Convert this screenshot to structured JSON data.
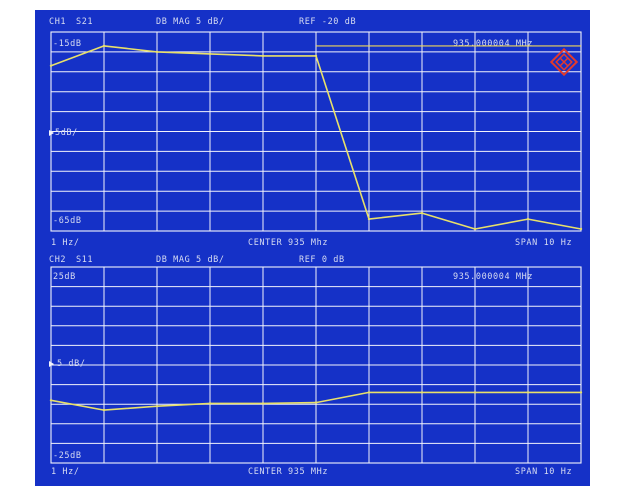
{
  "colors": {
    "background": "#1531c7",
    "grid": "#f2f3fb",
    "trace": "#e8e06a",
    "text": "#d7dcf2",
    "logo": "#e23a2c"
  },
  "chart_data": [
    {
      "type": "line",
      "header": {
        "channel": "CH1",
        "parameter": "S21",
        "format": "DB MAG 5 dB/",
        "reference": "REF -20 dB"
      },
      "top_label": "-15dB",
      "scale_label": "5dB/",
      "bottom_label": "-65dB",
      "marker_readout": "935.000004 MHz",
      "footer": {
        "left": "1 Hz/",
        "center": "CENTER 935 Mhz",
        "right": "SPAN 10 Hz"
      },
      "ylim": [
        -65,
        -15
      ],
      "xlim": [
        930,
        940
      ],
      "grid": true,
      "x": [
        930,
        931,
        932,
        933,
        934,
        935,
        936,
        937,
        938,
        939,
        940
      ],
      "values": [
        -23.5,
        -18.5,
        -20.0,
        -20.5,
        -21.0,
        -21.0,
        -62.0,
        -60.5,
        -64.5,
        -62.0,
        -64.5
      ],
      "marker_x": 935,
      "marker_level": -18.5
    },
    {
      "type": "line",
      "header": {
        "channel": "CH2",
        "parameter": "S11",
        "format": "DB MAG 5 dB/",
        "reference": "REF 0 dB"
      },
      "top_label": "25dB",
      "scale_label": "5 dB/",
      "bottom_label": "-25dB",
      "marker_readout": "935.000004 MHz",
      "footer": {
        "left": "1 Hz/",
        "center": "CENTER 935 MHz",
        "right": "SPAN 10 Hz"
      },
      "ylim": [
        -25,
        25
      ],
      "xlim": [
        930,
        940
      ],
      "grid": true,
      "x": [
        930,
        931,
        932,
        933,
        934,
        935,
        936,
        937,
        938,
        939,
        940
      ],
      "values": [
        -9.0,
        -11.5,
        -10.5,
        -9.8,
        -9.8,
        -9.6,
        -7.0,
        -7.0,
        -7.0,
        -7.0,
        -7.0
      ]
    }
  ]
}
